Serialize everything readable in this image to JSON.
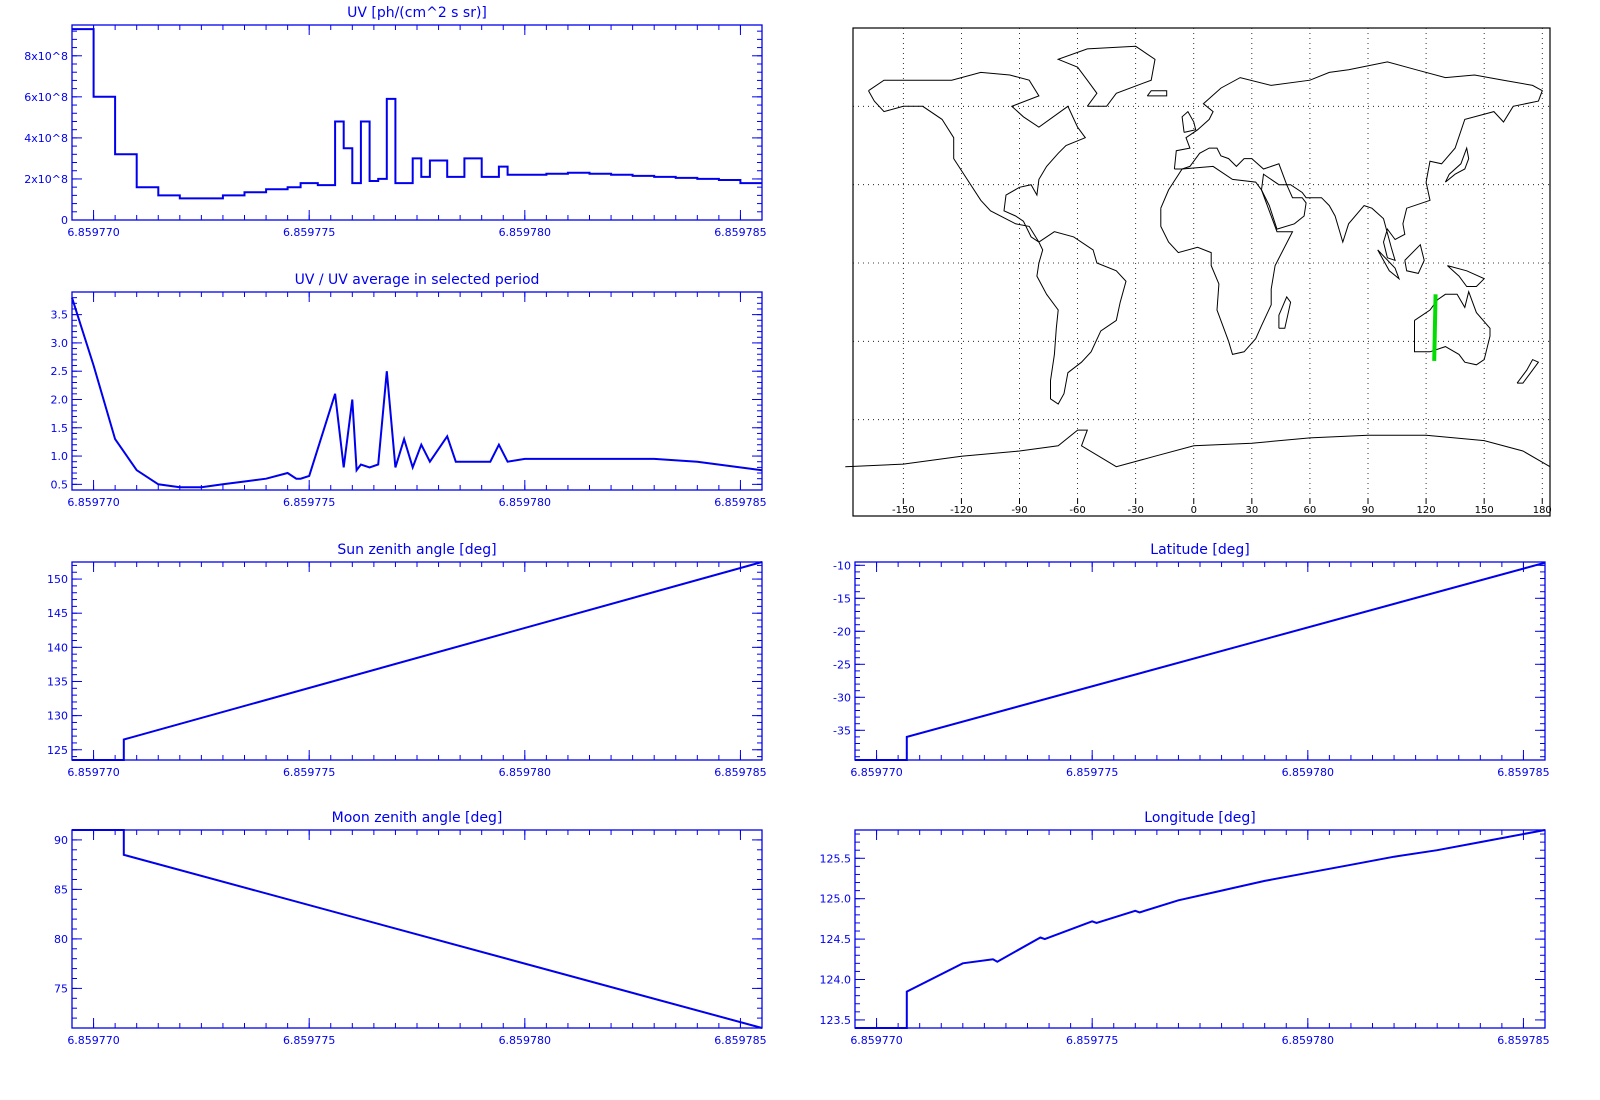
{
  "colors": {
    "axis": "#0000ee",
    "line": "#0000ee",
    "track": "#00dd00",
    "map": "#000000"
  },
  "x_axis": {
    "range": [
      6.8597695,
      6.8597855
    ],
    "ticks": [
      "6.859770",
      "6.859775",
      "6.859780",
      "6.859785"
    ]
  },
  "chart_data": [
    {
      "id": "uv",
      "type": "line",
      "step": true,
      "title": "UV [ph/(cm^2 s sr)]",
      "ylim": [
        0,
        950000000.0
      ],
      "yticks": [
        0,
        200000000.0,
        400000000.0,
        600000000.0,
        800000000.0
      ],
      "ytick_labels": [
        "0",
        "2x10^8",
        "4x10^8",
        "6x10^8",
        "8x10^8"
      ],
      "x": [
        6.8597695,
        6.85977,
        6.8597705,
        6.859771,
        6.8597715,
        6.859772,
        6.8597725,
        6.859773,
        6.8597735,
        6.859774,
        6.8597745,
        6.8597748,
        6.8597752,
        6.8597756,
        6.8597758,
        6.859776,
        6.8597762,
        6.8597764,
        6.8597766,
        6.8597768,
        6.859777,
        6.8597774,
        6.8597776,
        6.8597778,
        6.8597782,
        6.8597786,
        6.859779,
        6.8597794,
        6.8597796,
        6.85978,
        6.8597805,
        6.859781,
        6.8597815,
        6.859782,
        6.8597825,
        6.859783,
        6.8597835,
        6.859784,
        6.8597845,
        6.859785,
        6.8597855
      ],
      "y": [
        930000000.0,
        600000000.0,
        320000000.0,
        160000000.0,
        120000000.0,
        105000000.0,
        105000000.0,
        120000000.0,
        135000000.0,
        150000000.0,
        160000000.0,
        180000000.0,
        170000000.0,
        480000000.0,
        350000000.0,
        180000000.0,
        480000000.0,
        190000000.0,
        200000000.0,
        590000000.0,
        180000000.0,
        300000000.0,
        210000000.0,
        290000000.0,
        210000000.0,
        300000000.0,
        210000000.0,
        260000000.0,
        220000000.0,
        220000000.0,
        225000000.0,
        230000000.0,
        225000000.0,
        220000000.0,
        215000000.0,
        210000000.0,
        205000000.0,
        200000000.0,
        195000000.0,
        180000000.0,
        180000000.0
      ]
    },
    {
      "id": "ratio",
      "type": "line",
      "title": "UV / UV average in selected period",
      "ylim": [
        0.4,
        3.9
      ],
      "yticks": [
        0.5,
        1.0,
        1.5,
        2.0,
        2.5,
        3.0,
        3.5
      ],
      "ytick_labels": [
        "0.5",
        "1.0",
        "1.5",
        "2.0",
        "2.5",
        "3.0",
        "3.5"
      ],
      "x": [
        6.8597695,
        6.85977,
        6.8597705,
        6.859771,
        6.8597715,
        6.859772,
        6.8597725,
        6.859773,
        6.8597735,
        6.859774,
        6.8597745,
        6.8597747,
        6.8597748,
        6.859775,
        6.8597756,
        6.8597758,
        6.859776,
        6.8597761,
        6.8597762,
        6.8597764,
        6.8597766,
        6.8597768,
        6.859777,
        6.8597772,
        6.8597774,
        6.8597776,
        6.8597778,
        6.8597782,
        6.8597784,
        6.8597786,
        6.859779,
        6.8597792,
        6.8597794,
        6.8597796,
        6.85978,
        6.859781,
        6.859782,
        6.859783,
        6.859784,
        6.8597855
      ],
      "y": [
        3.8,
        2.6,
        1.3,
        0.75,
        0.5,
        0.45,
        0.45,
        0.5,
        0.55,
        0.6,
        0.7,
        0.6,
        0.6,
        0.65,
        2.1,
        0.8,
        2.0,
        0.75,
        0.85,
        0.8,
        0.85,
        2.5,
        0.8,
        1.3,
        0.8,
        1.2,
        0.9,
        1.35,
        0.9,
        0.9,
        0.9,
        0.9,
        1.2,
        0.9,
        0.95,
        0.95,
        0.95,
        0.95,
        0.9,
        0.75
      ]
    },
    {
      "id": "sun",
      "type": "line",
      "title": "Sun zenith angle [deg]",
      "ylim": [
        123.5,
        152.5
      ],
      "yticks": [
        125,
        130,
        135,
        140,
        145,
        150
      ],
      "ytick_labels": [
        "125",
        "130",
        "135",
        "140",
        "145",
        "150"
      ],
      "x": [
        6.8597695,
        6.8597707,
        6.8597707,
        6.8597855
      ],
      "y": [
        123.5,
        123.5,
        126.5,
        152.5
      ]
    },
    {
      "id": "moon",
      "type": "line",
      "title": "Moon zenith angle [deg]",
      "ylim": [
        71,
        91
      ],
      "yticks": [
        75,
        80,
        85,
        90
      ],
      "ytick_labels": [
        "75",
        "80",
        "85",
        "90"
      ],
      "x": [
        6.8597695,
        6.8597707,
        6.8597707,
        6.8597855
      ],
      "y": [
        91,
        91,
        88.5,
        71
      ]
    },
    {
      "id": "lat",
      "type": "line",
      "title": "Latitude [deg]",
      "ylim": [
        -39.5,
        -9.5
      ],
      "yticks": [
        -35,
        -30,
        -25,
        -20,
        -15,
        -10
      ],
      "ytick_labels": [
        "-35",
        "-30",
        "-25",
        "-20",
        "-15",
        "-10"
      ],
      "x": [
        6.8597695,
        6.8597707,
        6.8597707,
        6.8597855
      ],
      "y": [
        -39.5,
        -39.5,
        -36.0,
        -9.6
      ]
    },
    {
      "id": "lon",
      "type": "line",
      "title": "Longitude [deg]",
      "ylim": [
        123.4,
        125.85
      ],
      "yticks": [
        123.5,
        124.0,
        124.5,
        125.0,
        125.5
      ],
      "ytick_labels": [
        "123.5",
        "124.0",
        "124.5",
        "125.0",
        "125.5"
      ],
      "x": [
        6.8597695,
        6.8597707,
        6.8597707,
        6.859772,
        6.8597727,
        6.8597728,
        6.8597738,
        6.8597739,
        6.859775,
        6.8597751,
        6.859776,
        6.8597761,
        6.859777,
        6.859778,
        6.859779,
        6.85978,
        6.859781,
        6.859782,
        6.859783,
        6.859784,
        6.8597855
      ],
      "y": [
        123.4,
        123.4,
        123.85,
        124.2,
        124.25,
        124.22,
        124.52,
        124.5,
        124.72,
        124.7,
        124.85,
        124.83,
        124.98,
        125.1,
        125.22,
        125.32,
        125.42,
        125.52,
        125.6,
        125.7,
        125.85
      ]
    }
  ],
  "map": {
    "lon_ticks": [
      -150,
      -120,
      -90,
      -60,
      -30,
      0,
      30,
      60,
      90,
      120,
      150,
      180
    ],
    "lon_tick_labels": [
      "-150",
      "-120",
      "-90",
      "-60",
      "-30",
      "0",
      "30",
      "60",
      "90",
      "120",
      "150",
      "180"
    ],
    "track": {
      "lon": [
        124.2,
        124.9
      ],
      "lat": [
        -37.5,
        -12.0
      ]
    }
  }
}
